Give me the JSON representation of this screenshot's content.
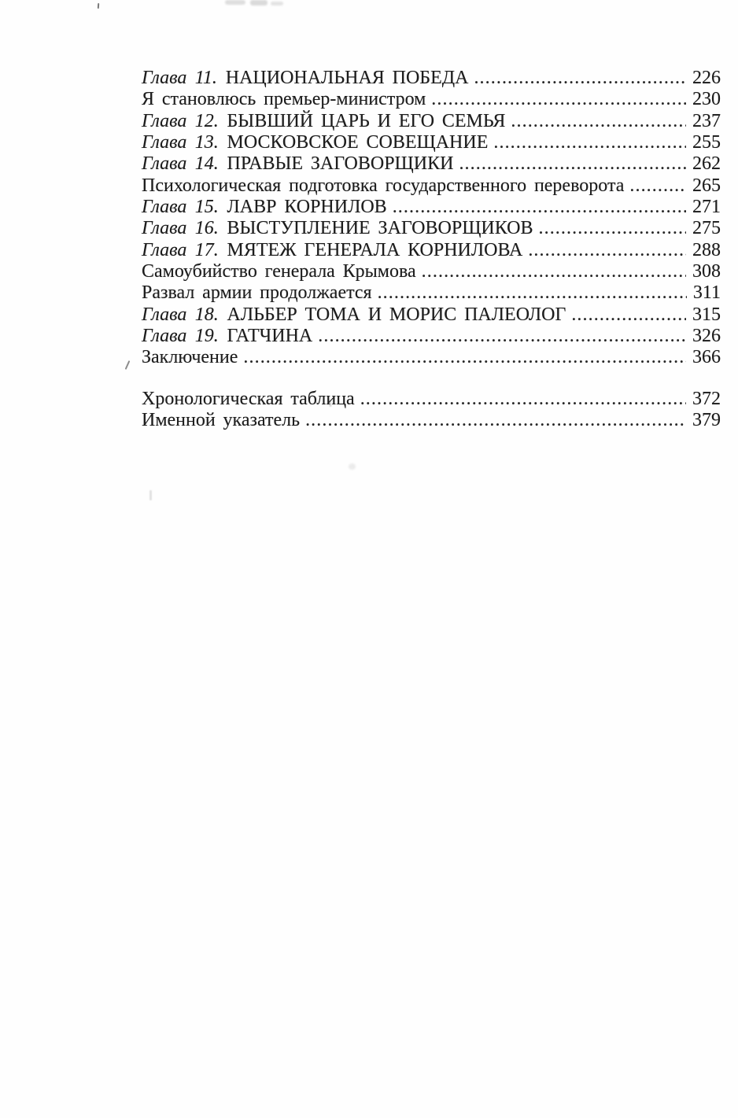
{
  "document": {
    "kind": "scanned-book-table-of-contents",
    "language": "ru"
  },
  "colors": {
    "paper": "#fefefe",
    "ink": "#1d1d1d"
  },
  "toc": {
    "entries": [
      {
        "prefix": "Глава 11.",
        "title": "НАЦИОНАЛЬНАЯ ПОБЕДА",
        "page": "226"
      },
      {
        "prefix": "",
        "title": "Я становлюсь премьер-министром",
        "page": "230"
      },
      {
        "prefix": "Глава 12.",
        "title": "БЫВШИЙ ЦАРЬ И ЕГО СЕМЬЯ",
        "page": "237"
      },
      {
        "prefix": "Глава 13.",
        "title": "МОСКОВСКОЕ СОВЕЩАНИЕ",
        "page": "255"
      },
      {
        "prefix": "Глава 14.",
        "title": "ПРАВЫЕ ЗАГОВОРЩИКИ",
        "page": "262"
      },
      {
        "prefix": "",
        "title": "Психологическая подготовка государственного переворота",
        "page": "265"
      },
      {
        "prefix": "Глава 15.",
        "title": "ЛАВР КОРНИЛОВ",
        "page": "271"
      },
      {
        "prefix": "Глава 16.",
        "title": "ВЫСТУПЛЕНИЕ ЗАГОВОРЩИКОВ",
        "page": "275"
      },
      {
        "prefix": "Глава 17.",
        "title": "МЯТЕЖ ГЕНЕРАЛА КОРНИЛОВА",
        "page": "288"
      },
      {
        "prefix": "",
        "title": "Самоубийство генерала Крымова",
        "page": "308"
      },
      {
        "prefix": "",
        "title": "Развал армии продолжается",
        "page": "311"
      },
      {
        "prefix": "Глава 18.",
        "title": "АЛЬБЕР ТОМА И МОРИС ПАЛЕОЛОГ",
        "page": "315"
      },
      {
        "prefix": "Глава 19.",
        "title": "ГАТЧИНА",
        "page": "326"
      },
      {
        "prefix": "",
        "title": "Заключение",
        "page": "366"
      }
    ],
    "back_matter": [
      {
        "prefix": "",
        "title": "Хронологическая таблица",
        "page": "372"
      },
      {
        "prefix": "",
        "title": "Именной указатель",
        "page": "379"
      }
    ]
  }
}
